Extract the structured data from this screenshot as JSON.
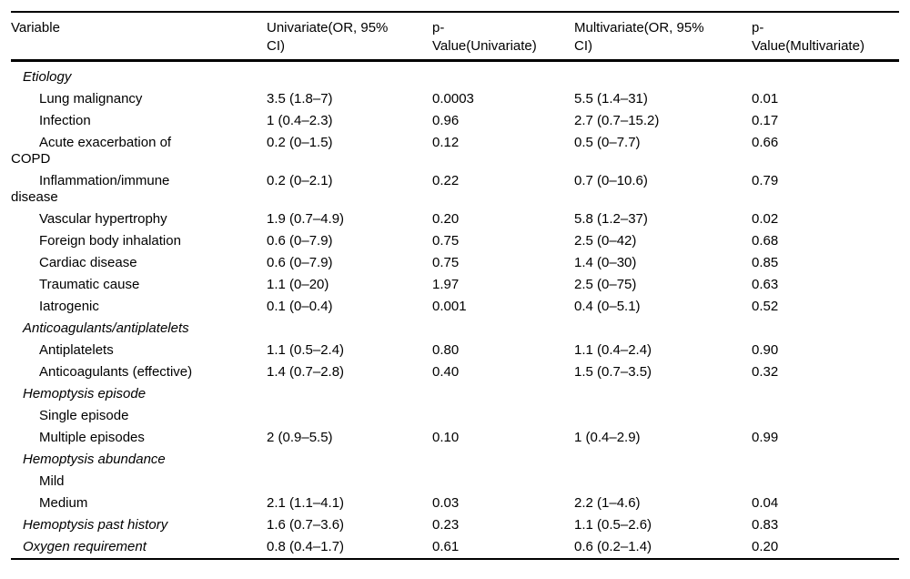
{
  "table": {
    "columns": [
      {
        "lines": [
          "Variable"
        ]
      },
      {
        "lines": [
          "Univariate(OR, 95%",
          "CI)"
        ]
      },
      {
        "lines": [
          "p-",
          "Value(Univariate)"
        ]
      },
      {
        "lines": [
          "Multivariate(OR, 95%",
          "CI)"
        ]
      },
      {
        "lines": [
          "p-",
          "Value(Multivariate)"
        ]
      }
    ],
    "rows": [
      {
        "type": "section",
        "label_lines": [
          "Etiology"
        ],
        "cells": [
          "",
          "",
          "",
          ""
        ]
      },
      {
        "type": "item",
        "label_lines": [
          "Lung malignancy"
        ],
        "cells": [
          "3.5 (1.8–7)",
          "0.0003",
          "5.5 (1.4–31)",
          "0.01"
        ]
      },
      {
        "type": "item",
        "label_lines": [
          "Infection"
        ],
        "cells": [
          "1 (0.4–2.3)",
          "0.96",
          "2.7 (0.7–15.2)",
          "0.17"
        ]
      },
      {
        "type": "item",
        "label_lines": [
          "Acute exacerbation of",
          "COPD"
        ],
        "cells": [
          "0.2 (0–1.5)",
          "0.12",
          "0.5 (0–7.7)",
          "0.66"
        ]
      },
      {
        "type": "item",
        "label_lines": [
          "Inflammation/immune",
          "disease"
        ],
        "cells": [
          "0.2 (0–2.1)",
          "0.22",
          "0.7 (0–10.6)",
          "0.79"
        ]
      },
      {
        "type": "item",
        "label_lines": [
          "Vascular hypertrophy"
        ],
        "cells": [
          "1.9 (0.7–4.9)",
          "0.20",
          "5.8 (1.2–37)",
          "0.02"
        ]
      },
      {
        "type": "item",
        "label_lines": [
          "Foreign body inhalation"
        ],
        "cells": [
          "0.6 (0–7.9)",
          "0.75",
          "2.5 (0–42)",
          "0.68"
        ]
      },
      {
        "type": "item",
        "label_lines": [
          "Cardiac disease"
        ],
        "cells": [
          "0.6 (0–7.9)",
          "0.75",
          "1.4 (0–30)",
          "0.85"
        ]
      },
      {
        "type": "item",
        "label_lines": [
          "Traumatic cause"
        ],
        "cells": [
          "1.1 (0–20)",
          "1.97",
          "2.5 (0–75)",
          "0.63"
        ]
      },
      {
        "type": "item",
        "label_lines": [
          "Iatrogenic"
        ],
        "cells": [
          "0.1 (0–0.4)",
          "0.001",
          "0.4 (0–5.1)",
          "0.52"
        ]
      },
      {
        "type": "section",
        "label_lines": [
          "Anticoagulants/antiplatelets"
        ],
        "cells": [
          "",
          "",
          "",
          ""
        ]
      },
      {
        "type": "item",
        "label_lines": [
          "Antiplatelets"
        ],
        "cells": [
          "1.1 (0.5–2.4)",
          "0.80",
          "1.1 (0.4–2.4)",
          "0.90"
        ]
      },
      {
        "type": "item",
        "label_lines": [
          "Anticoagulants (effective)"
        ],
        "cells": [
          "1.4 (0.7–2.8)",
          "0.40",
          "1.5 (0.7–3.5)",
          "0.32"
        ]
      },
      {
        "type": "section",
        "label_lines": [
          "Hemoptysis episode"
        ],
        "cells": [
          "",
          "",
          "",
          ""
        ]
      },
      {
        "type": "item",
        "label_lines": [
          "Single episode"
        ],
        "cells": [
          "",
          "",
          "",
          ""
        ]
      },
      {
        "type": "item",
        "label_lines": [
          "Multiple episodes"
        ],
        "cells": [
          "2 (0.9–5.5)",
          "0.10",
          "1 (0.4–2.9)",
          "0.99"
        ]
      },
      {
        "type": "section",
        "label_lines": [
          "Hemoptysis abundance"
        ],
        "cells": [
          "",
          "",
          "",
          ""
        ]
      },
      {
        "type": "item",
        "label_lines": [
          "Mild"
        ],
        "cells": [
          "",
          "",
          "",
          ""
        ]
      },
      {
        "type": "item",
        "label_lines": [
          "Medium"
        ],
        "cells": [
          "2.1 (1.1–4.1)",
          "0.03",
          "2.2 (1–4.6)",
          "0.04"
        ]
      },
      {
        "type": "section",
        "label_lines": [
          "Hemoptysis past history"
        ],
        "cells": [
          "1.6 (0.7–3.6)",
          "0.23",
          "1.1 (0.5–2.6)",
          "0.83"
        ]
      },
      {
        "type": "section",
        "label_lines": [
          "Oxygen requirement"
        ],
        "cells": [
          "0.8 (0.4–1.7)",
          "0.61",
          "0.6 (0.2–1.4)",
          "0.20"
        ]
      }
    ]
  }
}
